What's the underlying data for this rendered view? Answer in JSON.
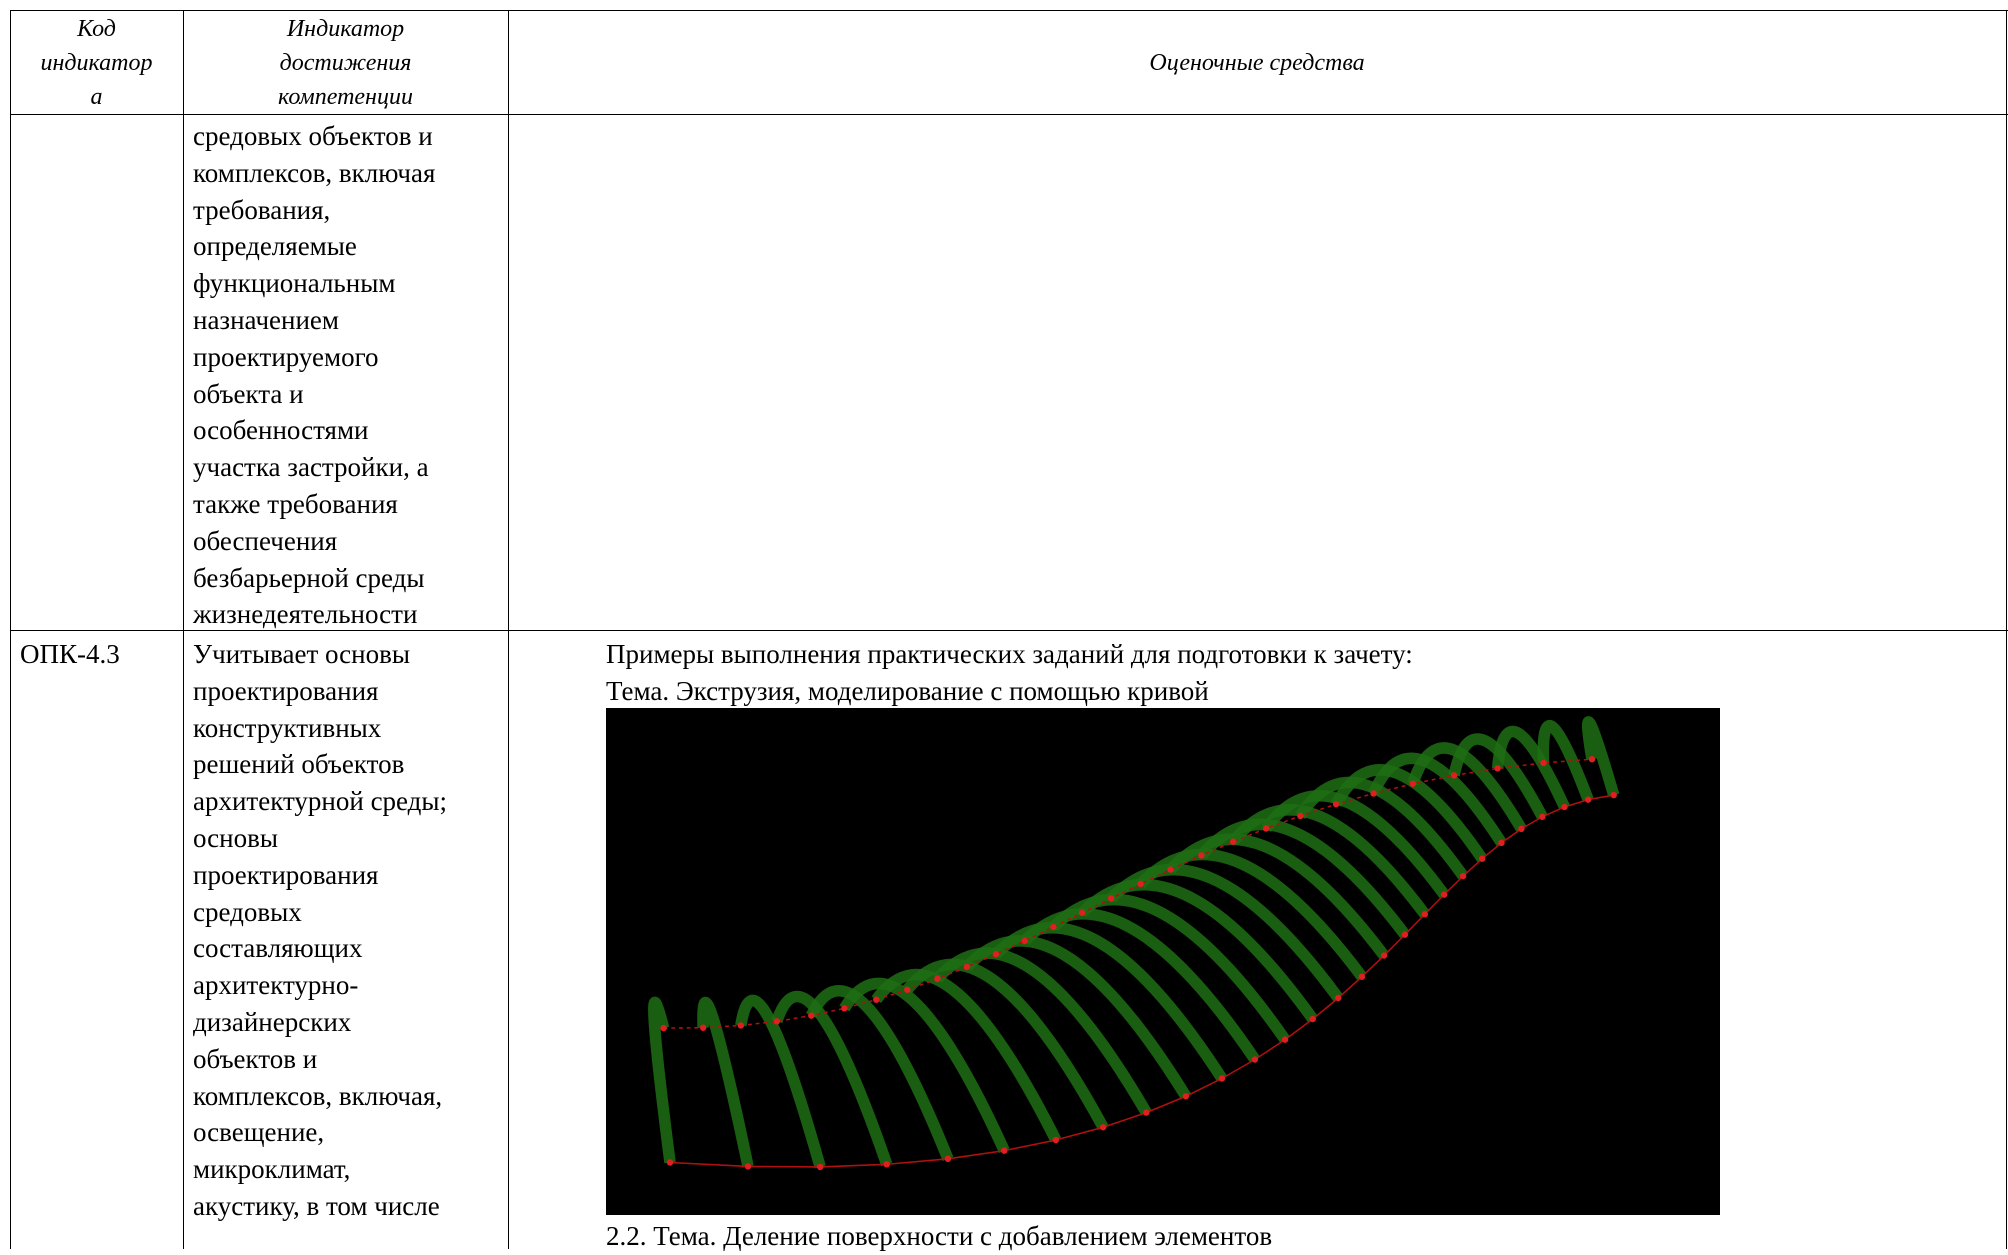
{
  "table": {
    "header": [
      [
        "Код",
        "индикатор",
        "а"
      ],
      [
        "Индикатор",
        "достижения",
        "компетенции"
      ],
      [
        "Оценочные средства"
      ]
    ],
    "rows": [
      [
        [],
        [
          "средовых объектов и",
          "комплексов, включая",
          "требования,",
          "определяемые",
          "функциональным",
          "назначением",
          "проектируемого",
          "объекта и",
          "особенностями",
          "участка застройки, а",
          "также требования",
          "обеспечения",
          "безбарьерной среды",
          "жизнедеятельности"
        ],
        []
      ],
      [
        [
          "ОПК-4.3"
        ],
        [
          "Учитывает основы",
          "проектирования",
          "конструктивных",
          "решений объектов",
          "архитектурной среды;",
          "основы",
          "проектирования",
          "средовых",
          "составляющих",
          "архитектурно-",
          "дизайнерских",
          "объектов и",
          "комплексов, включая,",
          "освещение,",
          "микроклимат,",
          "акустику, в том числе"
        ],
        [
          "Примеры выполнения практических заданий для подготовки к зачету:",
          "Тема. Экструзия, моделирование с помощью кривой",
          "2.2. Тема. Деление поверхности с добавлением элементов"
        ]
      ]
    ]
  }
}
